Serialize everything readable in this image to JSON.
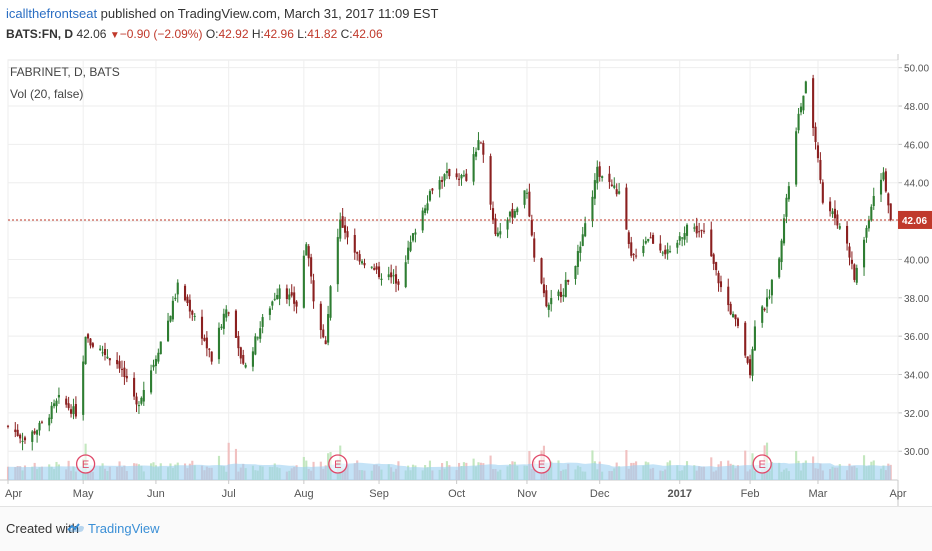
{
  "header": {
    "author": "icallthefrontseat",
    "published_text": " published on TradingView.com, March 31, 2017 11:09 EST",
    "symbol": "BATS:FN, D",
    "last": "42.06",
    "change": "−0.90 (−2.09%)",
    "o_label": "O:",
    "o_value": "42.92",
    "h_label": "H:",
    "h_value": "42.96",
    "l_label": "L:",
    "l_value": "41.82",
    "c_label": "C:",
    "c_value": "42.06"
  },
  "legend": {
    "title": "FABRINET, D, BATS",
    "volume": "Vol (20, false)"
  },
  "footer": {
    "created_with": "Created with",
    "brand": "TradingView"
  },
  "colors": {
    "up": "#2e7d32",
    "down": "#8b2020",
    "vol_up": "#b9e3b4",
    "vol_down": "#efb6b6",
    "vol_ma": "#9dd0f2",
    "price_line": "#c0392b",
    "earnings": "#e04a6a"
  },
  "chart_data": {
    "type": "candlestick",
    "y_range": [
      28.5,
      50.4
    ],
    "y_ticks": [
      "30.00",
      "32.00",
      "34.00",
      "36.00",
      "38.00",
      "40.00",
      "42.00",
      "44.00",
      "46.00",
      "48.00",
      "50.00"
    ],
    "x_labels": [
      {
        "label": "Apr",
        "x": "2016-04-01"
      },
      {
        "label": "May",
        "x": "2016-05-02"
      },
      {
        "label": "Jun",
        "x": "2016-06-01"
      },
      {
        "label": "Jul",
        "x": "2016-07-01"
      },
      {
        "label": "Aug",
        "x": "2016-08-01"
      },
      {
        "label": "Sep",
        "x": "2016-09-01"
      },
      {
        "label": "Oct",
        "x": "2016-10-03"
      },
      {
        "label": "Nov",
        "x": "2016-11-01"
      },
      {
        "label": "Dec",
        "x": "2016-12-01"
      },
      {
        "label": "2017",
        "x": "2017-01-03"
      },
      {
        "label": "Feb",
        "x": "2017-02-01"
      },
      {
        "label": "Mar",
        "x": "2017-03-01"
      },
      {
        "label": "Apr",
        "x": "2017-04-03"
      }
    ],
    "last_price": "42.06",
    "earnings_marker": "E",
    "earnings_dates": [
      "2016-05-03",
      "2016-08-15",
      "2016-11-07",
      "2017-02-06"
    ],
    "anchors": [
      {
        "date": "2016-04-01",
        "close": 31.3
      },
      {
        "date": "2016-04-08",
        "close": 30.6
      },
      {
        "date": "2016-04-15",
        "close": 31.4
      },
      {
        "date": "2016-04-22",
        "close": 32.7
      },
      {
        "date": "2016-04-29",
        "close": 32.0
      },
      {
        "date": "2016-05-03",
        "close": 35.8
      },
      {
        "date": "2016-05-10",
        "close": 35.2
      },
      {
        "date": "2016-05-17",
        "close": 34.5
      },
      {
        "date": "2016-05-24",
        "close": 32.3
      },
      {
        "date": "2016-05-31",
        "close": 34.6
      },
      {
        "date": "2016-06-07",
        "close": 37.2
      },
      {
        "date": "2016-06-10",
        "close": 38.6
      },
      {
        "date": "2016-06-17",
        "close": 37.0
      },
      {
        "date": "2016-06-24",
        "close": 34.8
      },
      {
        "date": "2016-06-30",
        "close": 37.6
      },
      {
        "date": "2016-07-05",
        "close": 35.2
      },
      {
        "date": "2016-07-08",
        "close": 34.4
      },
      {
        "date": "2016-07-15",
        "close": 36.8
      },
      {
        "date": "2016-07-22",
        "close": 38.6
      },
      {
        "date": "2016-07-29",
        "close": 37.6
      },
      {
        "date": "2016-08-02",
        "close": 41.0
      },
      {
        "date": "2016-08-05",
        "close": 38.0
      },
      {
        "date": "2016-08-10",
        "close": 35.6
      },
      {
        "date": "2016-08-12",
        "close": 38.5
      },
      {
        "date": "2016-08-16",
        "close": 42.0
      },
      {
        "date": "2016-08-23",
        "close": 40.2
      },
      {
        "date": "2016-08-31",
        "close": 39.3
      },
      {
        "date": "2016-09-09",
        "close": 38.9
      },
      {
        "date": "2016-09-16",
        "close": 41.6
      },
      {
        "date": "2016-09-23",
        "close": 43.8
      },
      {
        "date": "2016-09-30",
        "close": 44.5
      },
      {
        "date": "2016-10-07",
        "close": 44.2
      },
      {
        "date": "2016-10-12",
        "close": 46.0
      },
      {
        "date": "2016-10-14",
        "close": 45.7
      },
      {
        "date": "2016-10-19",
        "close": 41.3
      },
      {
        "date": "2016-10-26",
        "close": 42.4
      },
      {
        "date": "2016-11-01",
        "close": 43.6
      },
      {
        "date": "2016-11-04",
        "close": 40.0
      },
      {
        "date": "2016-11-09",
        "close": 37.6
      },
      {
        "date": "2016-11-16",
        "close": 38.4
      },
      {
        "date": "2016-11-23",
        "close": 40.5
      },
      {
        "date": "2016-11-30",
        "close": 44.6
      },
      {
        "date": "2016-12-05",
        "close": 44.0
      },
      {
        "date": "2016-12-09",
        "close": 43.4
      },
      {
        "date": "2016-12-14",
        "close": 40.0
      },
      {
        "date": "2016-12-21",
        "close": 41.2
      },
      {
        "date": "2016-12-30",
        "close": 40.2
      },
      {
        "date": "2017-01-06",
        "close": 41.8
      },
      {
        "date": "2017-01-13",
        "close": 41.3
      },
      {
        "date": "2017-01-20",
        "close": 38.5
      },
      {
        "date": "2017-01-27",
        "close": 36.4
      },
      {
        "date": "2017-02-01",
        "close": 34.2
      },
      {
        "date": "2017-02-03",
        "close": 36.7
      },
      {
        "date": "2017-02-08",
        "close": 37.8
      },
      {
        "date": "2017-02-13",
        "close": 40.3
      },
      {
        "date": "2017-02-17",
        "close": 43.9
      },
      {
        "date": "2017-02-21",
        "close": 47.5
      },
      {
        "date": "2017-02-24",
        "close": 49.1
      },
      {
        "date": "2017-03-01",
        "close": 45.5
      },
      {
        "date": "2017-03-03",
        "close": 43.0
      },
      {
        "date": "2017-03-08",
        "close": 42.2
      },
      {
        "date": "2017-03-13",
        "close": 40.9
      },
      {
        "date": "2017-03-16",
        "close": 39.0
      },
      {
        "date": "2017-03-21",
        "close": 41.6
      },
      {
        "date": "2017-03-24",
        "close": 43.5
      },
      {
        "date": "2017-03-28",
        "close": 44.6
      },
      {
        "date": "2017-03-31",
        "close": 42.06
      }
    ],
    "volume_spikes": [
      "2016-05-03",
      "2016-07-01",
      "2016-08-16",
      "2016-11-08",
      "2017-02-07",
      "2017-02-08"
    ]
  }
}
